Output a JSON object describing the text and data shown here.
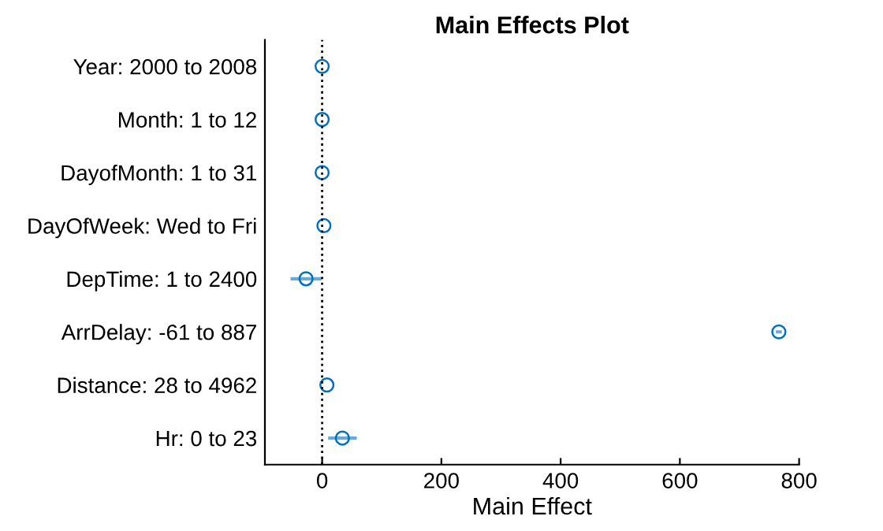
{
  "chart_data": {
    "type": "scatter",
    "orientation": "horizontal",
    "title": "Main Effects Plot",
    "xlabel": "Main Effect",
    "categories": [
      "Year: 2000 to 2008",
      "Month: 1 to 12",
      "DayofMonth: 1 to 31",
      "DayOfWeek: Wed to Fri",
      "DepTime: 1 to 2400",
      "ArrDelay: -61 to 887",
      "Distance: 28 to 4962",
      "Hr: 0 to 23"
    ],
    "series": [
      {
        "color": "#0072bd",
        "values": [
          0,
          0,
          0,
          3,
          -27,
          766,
          8,
          34
        ],
        "errors": [
          null,
          null,
          null,
          null,
          26,
          5,
          null,
          24
        ]
      }
    ],
    "xlim": [
      -96,
      800
    ],
    "xticks": [
      0,
      200,
      400,
      600,
      800
    ],
    "marker": "circle",
    "grid": false,
    "legend": false,
    "ref_lines": [
      {
        "axis": "x",
        "value": 0,
        "line_style": "dotted",
        "color": "#000000"
      }
    ]
  }
}
